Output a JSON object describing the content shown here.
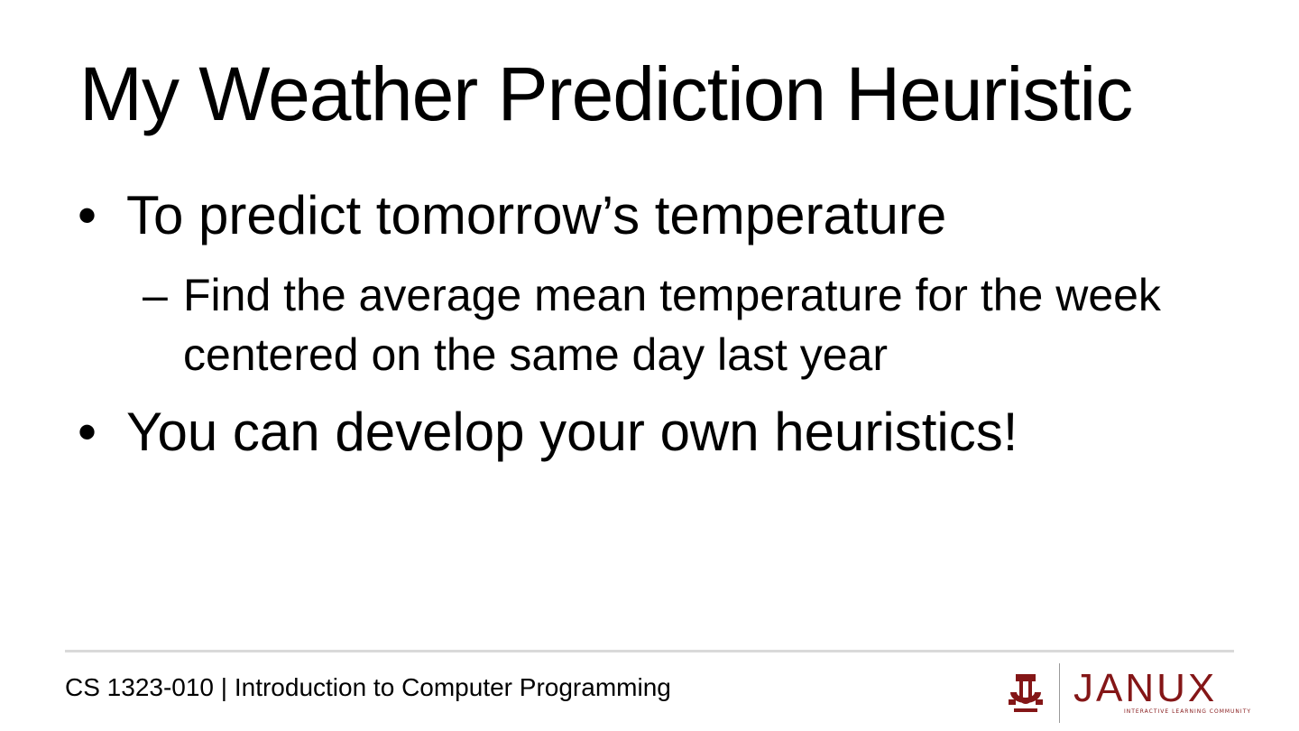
{
  "slide": {
    "title": "My Weather Prediction Heuristic",
    "bullets": [
      {
        "marker": "•",
        "text": "To predict tomorrow’s temperature",
        "sub": [
          {
            "marker": "–",
            "text": "Find the average mean temperature for the week centered on the same day last year"
          }
        ]
      },
      {
        "marker": "•",
        "text": "You can develop your own heuristics!"
      }
    ]
  },
  "footer": {
    "course": "CS 1323-010 | Introduction to Computer Programming",
    "logo": {
      "ou_icon": "ou-monogram-icon",
      "brand": "JANUX",
      "tagline": "INTERACTIVE LEARNING COMMUNITY",
      "brand_color": "#841617"
    },
    "rule_color": "#d9d9d9"
  }
}
